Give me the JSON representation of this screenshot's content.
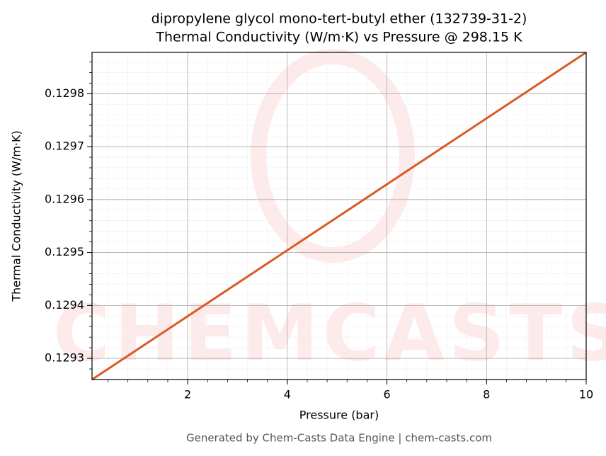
{
  "chart_data": {
    "type": "line",
    "title": "dipropylene glycol mono-tert-butyl ether (132739-31-2)",
    "subtitle": "Thermal Conductivity (W/m·K) vs Pressure @ 298.15 K",
    "x_label": "Pressure (bar)",
    "y_label": "Thermal Conductivity (W/m·K)",
    "footer": "Generated by Chem-Casts Data Engine | chem-casts.com",
    "watermark": "CHEMCASTS",
    "x": [
      0.08,
      10
    ],
    "series": [
      {
        "name": "Thermal Conductivity",
        "color": "#d95a24",
        "values": [
          0.12926,
          0.129878
        ]
      }
    ],
    "xlim": [
      0.08,
      10
    ],
    "xticks": [
      2,
      4,
      6,
      8,
      10
    ],
    "ylim": [
      0.12926,
      0.129878
    ],
    "yticks": [
      0.1293,
      0.1294,
      0.1295,
      0.1296,
      0.1297,
      0.1298
    ],
    "grid": true
  }
}
